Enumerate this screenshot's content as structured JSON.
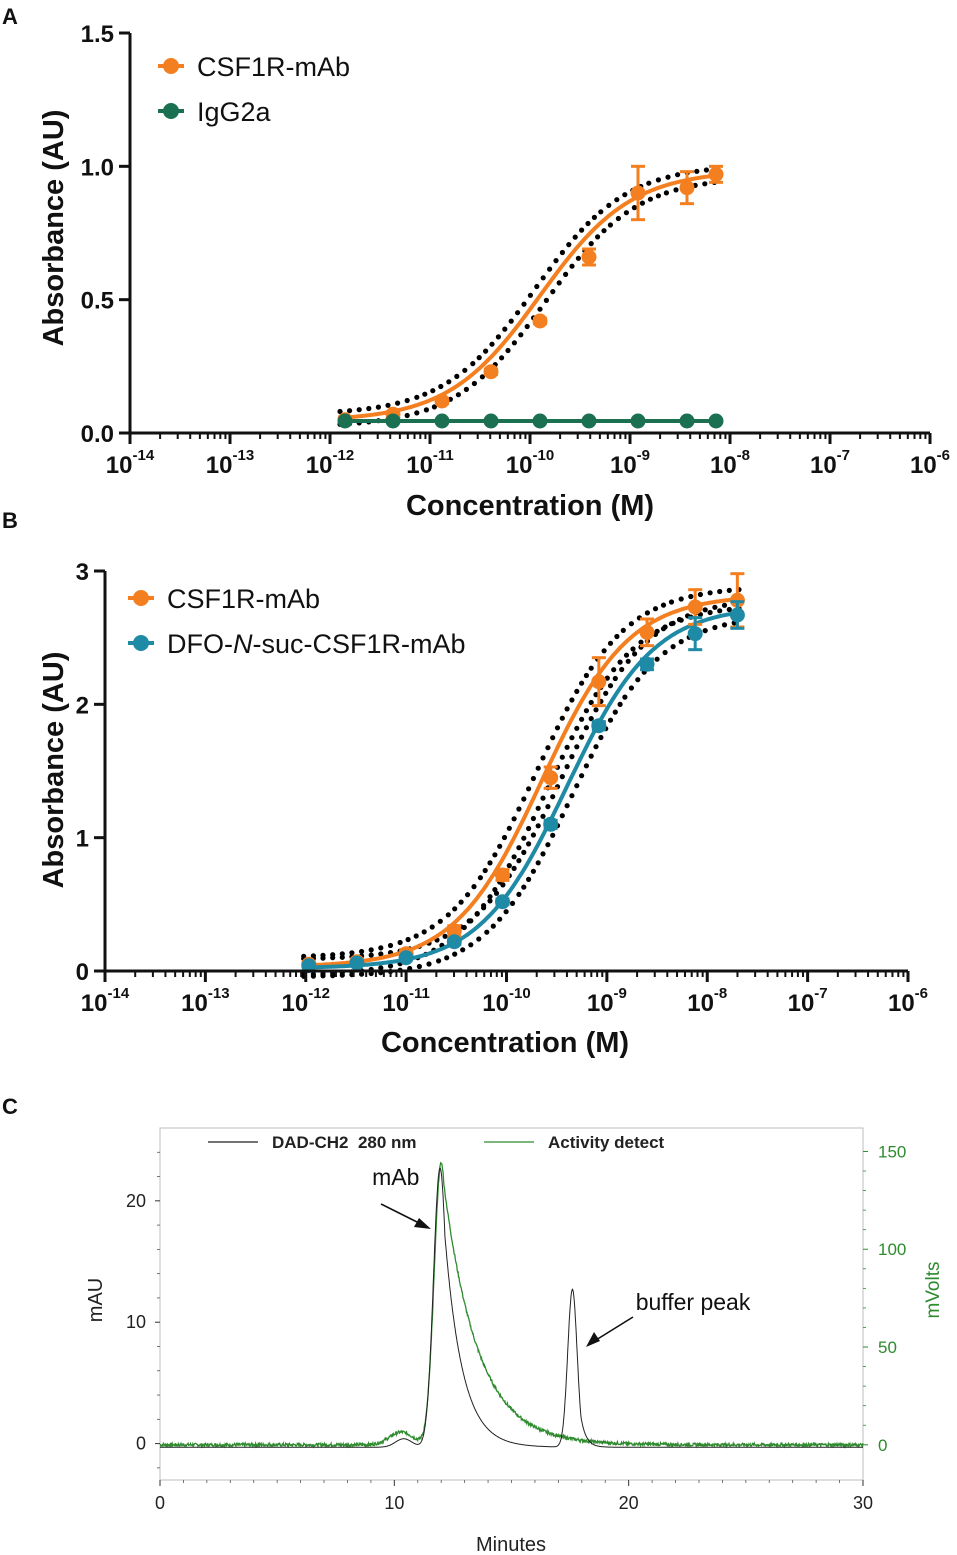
{
  "colors": {
    "orange": "#f47f20",
    "green_dark": "#1a7050",
    "teal": "#1f8aa5",
    "ci_dots": "#000000",
    "chrom_black": "#222222",
    "chrom_green": "#2e8b2e"
  },
  "chart_data": [
    {
      "panel": "A",
      "type": "scatter",
      "xscale": "log10",
      "xlabel": "Concentration (M)",
      "ylabel": "Absorbance (AU)",
      "xlim_exp": [
        -14,
        -6
      ],
      "ylim": [
        0,
        1.5
      ],
      "yticks": [
        "0.0",
        "0.5",
        "1.0",
        "1.5"
      ],
      "xtick_base": "10",
      "xtick_exps": [
        "-14",
        "-13",
        "-12",
        "-11",
        "-10",
        "-9",
        "-8",
        "-7",
        "-6"
      ],
      "legend_position": "top-left",
      "series": [
        {
          "name": "CSF1R-mAb",
          "color_key": "orange",
          "fit": "sigmoid",
          "fit_params": {
            "bottom": 0.045,
            "top": 0.985,
            "log_ec50": -9.9,
            "hill": 0.95
          },
          "ci_band": true,
          "points": [
            {
              "logx": -11.85,
              "y": 0.05,
              "err": 0.01
            },
            {
              "logx": -11.37,
              "y": 0.07,
              "err": 0.01
            },
            {
              "logx": -10.88,
              "y": 0.12,
              "err": 0.01
            },
            {
              "logx": -10.39,
              "y": 0.23,
              "err": 0.01
            },
            {
              "logx": -9.9,
              "y": 0.42,
              "err": 0.01
            },
            {
              "logx": -9.41,
              "y": 0.66,
              "err": 0.03
            },
            {
              "logx": -8.92,
              "y": 0.9,
              "err": 0.1
            },
            {
              "logx": -8.43,
              "y": 0.92,
              "err": 0.06
            },
            {
              "logx": -8.14,
              "y": 0.97,
              "err": 0.03
            }
          ]
        },
        {
          "name": "IgG2a",
          "color_key": "green_dark",
          "fit": "flat",
          "fit_params": {
            "value": 0.045
          },
          "ci_band": false,
          "points": [
            {
              "logx": -11.85,
              "y": 0.045,
              "err": 0
            },
            {
              "logx": -11.37,
              "y": 0.045,
              "err": 0
            },
            {
              "logx": -10.88,
              "y": 0.045,
              "err": 0
            },
            {
              "logx": -10.39,
              "y": 0.045,
              "err": 0
            },
            {
              "logx": -9.9,
              "y": 0.045,
              "err": 0
            },
            {
              "logx": -9.41,
              "y": 0.045,
              "err": 0
            },
            {
              "logx": -8.92,
              "y": 0.045,
              "err": 0
            },
            {
              "logx": -8.43,
              "y": 0.045,
              "err": 0
            },
            {
              "logx": -8.14,
              "y": 0.045,
              "err": 0
            }
          ]
        }
      ]
    },
    {
      "panel": "B",
      "type": "scatter",
      "xscale": "log10",
      "xlabel": "Concentration (M)",
      "ylabel": "Absorbance (AU)",
      "xlim_exp": [
        -14,
        -6
      ],
      "ylim": [
        0,
        3
      ],
      "yticks": [
        "0",
        "1",
        "2",
        "3"
      ],
      "xtick_base": "10",
      "xtick_exps": [
        "-14",
        "-13",
        "-12",
        "-11",
        "-10",
        "-9",
        "-8",
        "-7",
        "-6"
      ],
      "legend_position": "top-left",
      "series": [
        {
          "name": "CSF1R-mAb",
          "color_key": "orange",
          "fit": "sigmoid",
          "fit_params": {
            "bottom": 0.03,
            "top": 2.82,
            "log_ec50": -9.65,
            "hill": 1.0
          },
          "ci_band": true,
          "points": [
            {
              "logx": -11.97,
              "y": 0.05,
              "err": 0.02
            },
            {
              "logx": -11.49,
              "y": 0.07,
              "err": 0.02
            },
            {
              "logx": -11.0,
              "y": 0.13,
              "err": 0.03
            },
            {
              "logx": -10.52,
              "y": 0.3,
              "err": 0.04
            },
            {
              "logx": -10.04,
              "y": 0.72,
              "err": 0.04
            },
            {
              "logx": -9.56,
              "y": 1.45,
              "err": 0.08
            },
            {
              "logx": -9.08,
              "y": 2.17,
              "err": 0.18
            },
            {
              "logx": -8.6,
              "y": 2.54,
              "err": 0.1
            },
            {
              "logx": -8.12,
              "y": 2.73,
              "err": 0.13
            },
            {
              "logx": -7.7,
              "y": 2.78,
              "err": 0.2
            }
          ]
        },
        {
          "name": "DFO-N-suc-CSF1R-mAb",
          "name_parts": [
            "DFO-",
            "N",
            "-suc-CSF1R-mAb"
          ],
          "color_key": "teal",
          "fit": "sigmoid",
          "fit_params": {
            "bottom": 0.02,
            "top": 2.74,
            "log_ec50": -9.4,
            "hill": 1.0
          },
          "ci_band": true,
          "points": [
            {
              "logx": -11.97,
              "y": 0.04,
              "err": 0.01
            },
            {
              "logx": -11.49,
              "y": 0.06,
              "err": 0.01
            },
            {
              "logx": -11.0,
              "y": 0.1,
              "err": 0.01
            },
            {
              "logx": -10.52,
              "y": 0.22,
              "err": 0.02
            },
            {
              "logx": -10.04,
              "y": 0.52,
              "err": 0.02
            },
            {
              "logx": -9.56,
              "y": 1.1,
              "err": 0.03
            },
            {
              "logx": -9.08,
              "y": 1.84,
              "err": 0.03
            },
            {
              "logx": -8.6,
              "y": 2.3,
              "err": 0.04
            },
            {
              "logx": -8.12,
              "y": 2.53,
              "err": 0.12
            },
            {
              "logx": -7.7,
              "y": 2.67,
              "err": 0.1
            }
          ]
        }
      ]
    },
    {
      "panel": "C",
      "type": "line",
      "xlabel": "Minutes",
      "ylabel_left": "mAU",
      "ylabel_right": "mVolts",
      "xlim": [
        0,
        30
      ],
      "ylim_left": [
        -3,
        26
      ],
      "ylim_right": [
        -18,
        162
      ],
      "xticks": [
        "0",
        "10",
        "20",
        "30"
      ],
      "yticks_left": [
        "0",
        "10",
        "20"
      ],
      "yticks_right": [
        "0",
        "50",
        "100",
        "150"
      ],
      "legend_position": "top",
      "series": [
        {
          "name": "DAD-CH2  280 nm",
          "axis": "left",
          "color_key": "chrom_black",
          "baseline": -0.3,
          "peaks": [
            {
              "center": 10.4,
              "height": 0.7,
              "sigma": 0.35,
              "tail": 0.0
            },
            {
              "center": 11.95,
              "height": 23.0,
              "sigma": 0.28,
              "tail": 0.75
            },
            {
              "center": 17.6,
              "height": 13.0,
              "sigma": 0.2,
              "tail": 0.22
            }
          ]
        },
        {
          "name": "Activity detect",
          "axis": "right",
          "color_key": "chrom_green",
          "baseline": 0,
          "peaks": [
            {
              "center": 10.3,
              "height": 6.5,
              "sigma": 0.5,
              "tail": 0.0
            },
            {
              "center": 12.0,
              "height": 144.0,
              "sigma": 0.3,
              "tail": 1.45
            }
          ]
        }
      ],
      "annotations": [
        {
          "text": "mAb",
          "x": 9.05,
          "y": 21.3
        },
        {
          "text": "buffer peak",
          "x": 20.3,
          "y": 11.0
        }
      ]
    }
  ]
}
